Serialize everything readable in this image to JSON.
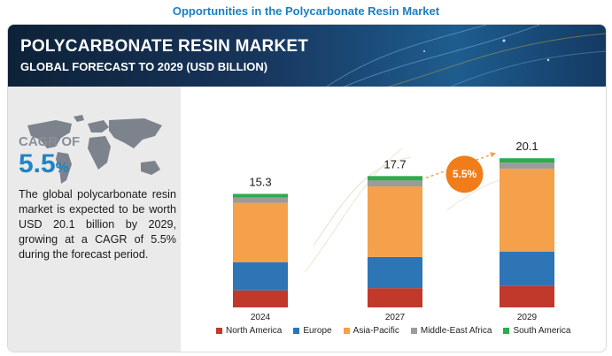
{
  "page_title": "Opportunities in the Polycarbonate Resin Market",
  "banner": {
    "title": "POLYCARBONATE RESIN MARKET",
    "subtitle": "GLOBAL FORECAST TO 2029 (USD BILLION)"
  },
  "summary": {
    "cagr_label": "CAGR OF",
    "cagr_number": "5.5",
    "cagr_unit": "%",
    "description": "The global polycarbonate resin market is expected to be worth USD 20.1 billion by 2029, growing at a CAGR of 5.5% during the forecast period."
  },
  "colors": {
    "North America": "#c0392b",
    "Europe": "#2e75b6",
    "Asia-Pacific": "#f5a04a",
    "Middle-East Africa": "#9b9b9b",
    "South America": "#2eaa4f",
    "cagr_bubble": "#f07d1a"
  },
  "chart_data": {
    "type": "bar",
    "stacked": true,
    "categories": [
      "2024",
      "2027",
      "2029"
    ],
    "totals": [
      "15.3",
      "17.7",
      "20.1"
    ],
    "cagr_bubble": "5.5%",
    "ylim": [
      0,
      22
    ],
    "series": [
      {
        "name": "North America",
        "values": [
          2.3,
          2.6,
          2.9
        ]
      },
      {
        "name": "Europe",
        "values": [
          3.8,
          4.2,
          4.6
        ]
      },
      {
        "name": "Asia-Pacific",
        "values": [
          8.0,
          9.5,
          11.2
        ]
      },
      {
        "name": "Middle-East Africa",
        "values": [
          0.7,
          0.8,
          0.8
        ]
      },
      {
        "name": "South America",
        "values": [
          0.5,
          0.6,
          0.6
        ]
      }
    ]
  }
}
